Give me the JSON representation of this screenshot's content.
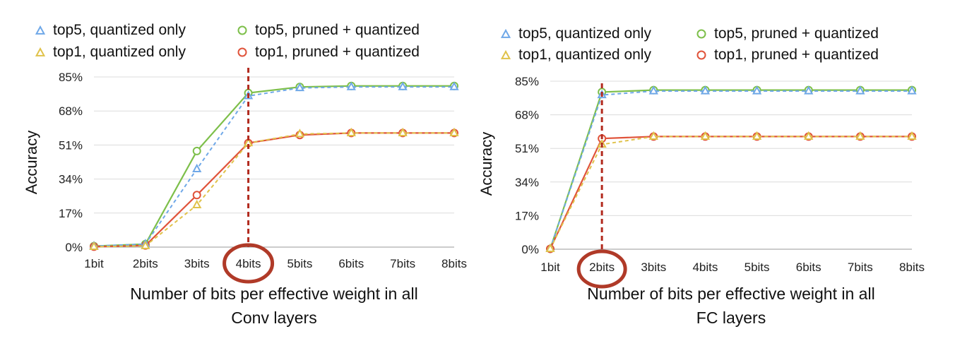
{
  "colors": {
    "top5_quantized_only": "#6fa8e8",
    "top1_quantized_only": "#e0c24a",
    "top5_pruned_quantized": "#7dbf4a",
    "top1_pruned_quantized": "#e0533a",
    "threshold_line": "#b22a1e",
    "highlight_circle": "#b03a28",
    "grid": "#dcdcdc"
  },
  "chart_data": [
    {
      "type": "line",
      "xlabel_lines": [
        "Number of bits per effective weight in all",
        "Conv layers"
      ],
      "ylabel": "Accuracy",
      "categories": [
        "1bit",
        "2bits",
        "3bits",
        "4bits",
        "5bits",
        "6bits",
        "7bits",
        "8bits"
      ],
      "yticks": [
        "0%",
        "17%",
        "34%",
        "51%",
        "68%",
        "85%"
      ],
      "ylim": [
        0,
        85
      ],
      "grid": "horizontal",
      "legend_position": "top",
      "highlight_category": "4bits",
      "series": [
        {
          "name": "top5, quantized only",
          "marker": "triangle",
          "dashed": true,
          "color_key": "top5_quantized_only",
          "values": [
            0.5,
            1.5,
            39,
            75.5,
            79.5,
            80,
            80,
            80
          ]
        },
        {
          "name": "top1, quantized only",
          "marker": "triangle",
          "dashed": true,
          "color_key": "top1_quantized_only",
          "values": [
            0.2,
            0.6,
            21,
            52,
            56.5,
            57,
            57,
            57
          ]
        },
        {
          "name": "top5, pruned + quantized",
          "marker": "circle",
          "dashed": false,
          "color_key": "top5_pruned_quantized",
          "values": [
            0.5,
            1.5,
            48,
            77,
            80,
            80.5,
            80.5,
            80.5
          ]
        },
        {
          "name": "top1, pruned + quantized",
          "marker": "circle",
          "dashed": false,
          "color_key": "top1_pruned_quantized",
          "values": [
            0.2,
            0.8,
            26,
            52,
            56,
            57,
            57,
            57
          ]
        }
      ]
    },
    {
      "type": "line",
      "xlabel_lines": [
        "Number of bits per effective weight in all",
        "FC layers"
      ],
      "ylabel": "Accuracy",
      "categories": [
        "1bit",
        "2bits",
        "3bits",
        "4bits",
        "5bits",
        "6bits",
        "7bits",
        "8bits"
      ],
      "yticks": [
        "0%",
        "17%",
        "34%",
        "51%",
        "68%",
        "85%"
      ],
      "ylim": [
        0,
        85
      ],
      "grid": "horizontal",
      "legend_position": "top",
      "highlight_category": "2bits",
      "series": [
        {
          "name": "top5, quantized only",
          "marker": "triangle",
          "dashed": true,
          "color_key": "top5_quantized_only",
          "values": [
            0.2,
            78,
            80,
            80,
            80,
            80,
            80,
            80
          ]
        },
        {
          "name": "top1, quantized only",
          "marker": "triangle",
          "dashed": true,
          "color_key": "top1_quantized_only",
          "values": [
            0.2,
            53,
            57,
            57,
            57,
            57,
            57,
            57
          ]
        },
        {
          "name": "top5, pruned + quantized",
          "marker": "circle",
          "dashed": false,
          "color_key": "top5_pruned_quantized",
          "values": [
            0.2,
            79.5,
            80.5,
            80.5,
            80.5,
            80.5,
            80.5,
            80.5
          ]
        },
        {
          "name": "top1, pruned + quantized",
          "marker": "circle",
          "dashed": false,
          "color_key": "top1_pruned_quantized",
          "values": [
            0.2,
            56,
            57,
            57,
            57,
            57,
            57,
            57
          ]
        }
      ]
    }
  ]
}
